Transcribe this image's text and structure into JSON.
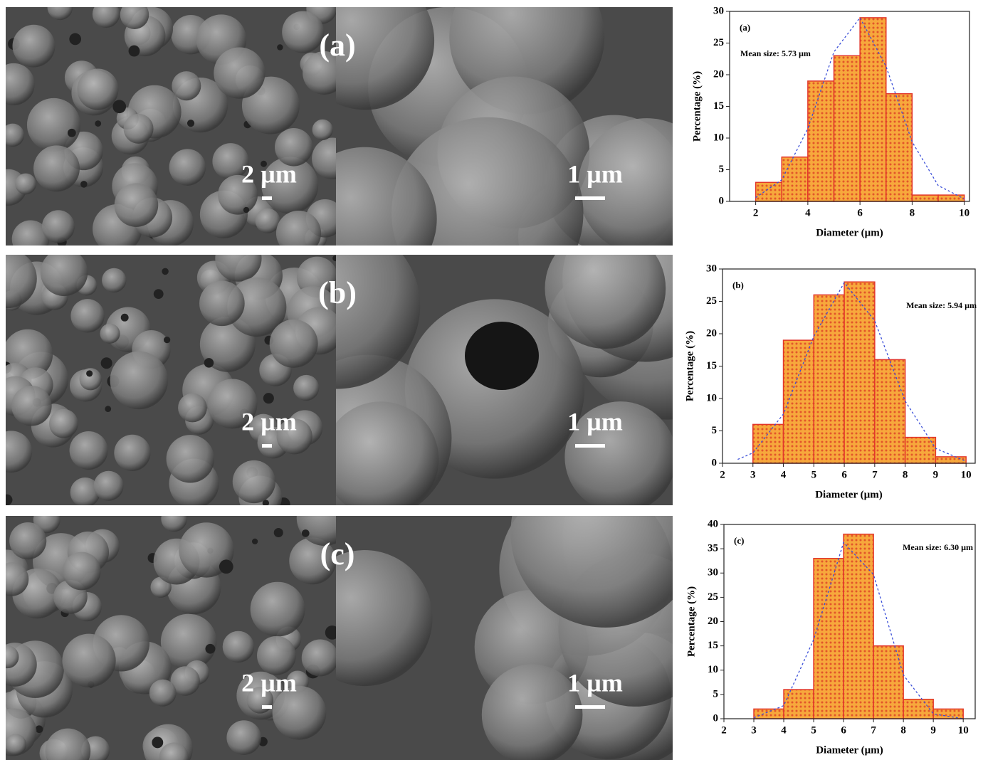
{
  "sem_panels": [
    {
      "label": "(a)",
      "scale_bars": [
        "2 µm",
        "1 µm"
      ]
    },
    {
      "label": "(b)",
      "scale_bars": [
        "2 µm",
        "1 µm"
      ]
    },
    {
      "label": "(c)",
      "scale_bars": [
        "2 µm",
        "1 µm"
      ]
    }
  ],
  "chart_data": [
    {
      "type": "histogram",
      "title": "(a)",
      "annotation": "Mean size: 5.73 µm",
      "x_label": "Diameter (µm)",
      "y_label": "Percentage (%)",
      "bins": [
        2,
        3,
        4,
        5,
        6,
        7,
        8,
        9,
        10
      ],
      "values": [
        3,
        7,
        19,
        23,
        29,
        17,
        1,
        1
      ],
      "color": "#f5a33a",
      "edge_color": "#e2362a",
      "fit_curve": {
        "color": "#3b4fd8",
        "x": [
          2,
          3,
          4,
          5,
          6,
          7,
          8,
          9,
          10
        ],
        "y": [
          0.6,
          3.4,
          11.5,
          23.6,
          29,
          21.3,
          9.4,
          2.5,
          0.4
        ]
      },
      "xlim": [
        1,
        10.2
      ],
      "xticks": [
        2,
        4,
        6,
        8,
        10
      ],
      "ylim": [
        0,
        30
      ],
      "yticks": [
        0,
        5,
        10,
        15,
        20,
        25,
        30
      ]
    },
    {
      "type": "histogram",
      "title": "(b)",
      "annotation": "Mean size: 5.94 µm",
      "x_label": "Diameter (µm)",
      "y_label": "Percentage (%)",
      "bins": [
        3,
        4,
        5,
        6,
        7,
        8,
        9,
        10
      ],
      "values": [
        6,
        19,
        26,
        28,
        16,
        4,
        1
      ],
      "color": "#f5a33a",
      "edge_color": "#e2362a",
      "fit_curve": {
        "color": "#3b4fd8",
        "x": [
          2.5,
          3,
          4,
          5,
          6,
          7,
          8,
          9,
          10
        ],
        "y": [
          0.6,
          1.6,
          7.6,
          19.6,
          27.9,
          22,
          9.6,
          2.3,
          0.3
        ]
      },
      "xlim": [
        2,
        10.3
      ],
      "xticks": [
        2,
        3,
        4,
        5,
        6,
        7,
        8,
        9,
        10
      ],
      "ylim": [
        0,
        30
      ],
      "yticks": [
        0,
        5,
        10,
        15,
        20,
        25,
        30
      ]
    },
    {
      "type": "histogram",
      "title": "(c)",
      "annotation": "Mean size: 6.30 µm",
      "x_label": "Diameter (µm)",
      "y_label": "Percentage (%)",
      "bins": [
        3,
        4,
        5,
        6,
        7,
        8,
        9,
        10
      ],
      "values": [
        2,
        6,
        33,
        38,
        15,
        4,
        2
      ],
      "color": "#f5a33a",
      "edge_color": "#e2362a",
      "fit_curve": {
        "color": "#3b4fd8",
        "x": [
          3,
          4,
          5,
          6,
          7,
          8,
          9,
          10
        ],
        "y": [
          0.2,
          2.7,
          16.3,
          36.3,
          29.7,
          9,
          1,
          0
        ]
      },
      "xlim": [
        2,
        10.4
      ],
      "xticks": [
        2,
        3,
        4,
        5,
        6,
        7,
        8,
        9,
        10
      ],
      "ylim": [
        0,
        40
      ],
      "yticks": [
        0,
        5,
        10,
        15,
        20,
        25,
        30,
        35,
        40
      ]
    }
  ]
}
